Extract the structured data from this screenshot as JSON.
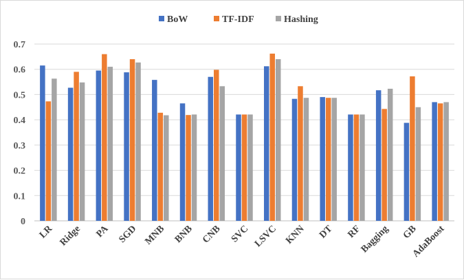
{
  "chart_data": {
    "type": "bar",
    "categories": [
      "LR",
      "Ridge",
      "PA",
      "SGD",
      "MNB",
      "BNB",
      "CNB",
      "SVC",
      "LSVC",
      "KNN",
      "DT",
      "RF",
      "Bagging",
      "GB",
      "AdaBoost"
    ],
    "series": [
      {
        "name": "BoW",
        "color": "#4472c4",
        "values": [
          0.615,
          0.527,
          0.595,
          0.588,
          0.558,
          0.465,
          0.57,
          0.421,
          0.612,
          0.483,
          0.49,
          0.421,
          0.517,
          0.388,
          0.47
        ]
      },
      {
        "name": "TF-IDF",
        "color": "#ed7d31",
        "values": [
          0.473,
          0.59,
          0.66,
          0.64,
          0.428,
          0.419,
          0.598,
          0.421,
          0.662,
          0.533,
          0.487,
          0.421,
          0.443,
          0.572,
          0.465
        ]
      },
      {
        "name": "Hashing",
        "color": "#a5a5a5",
        "values": [
          0.563,
          0.548,
          0.61,
          0.627,
          0.418,
          0.421,
          0.533,
          0.421,
          0.64,
          0.487,
          0.487,
          0.421,
          0.523,
          0.45,
          0.47
        ]
      }
    ],
    "yticks": [
      "0",
      "0.1",
      "0.2",
      "0.3",
      "0.4",
      "0.5",
      "0.6",
      "0.7"
    ],
    "ylim": [
      0,
      0.7
    ],
    "grid": true,
    "legend_position": "top-center"
  }
}
